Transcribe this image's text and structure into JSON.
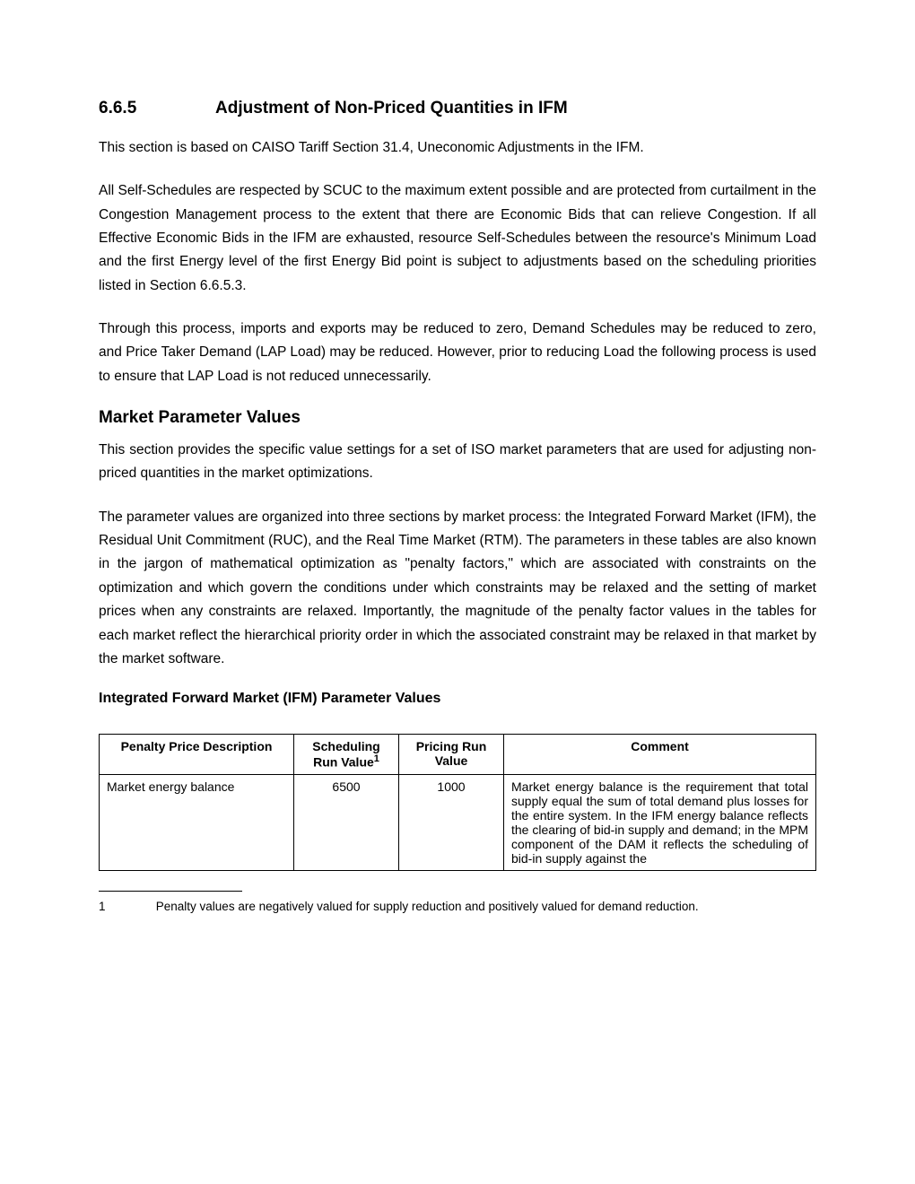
{
  "heading": {
    "number": "6.6.5",
    "title": "Adjustment of Non-Priced Quantities in IFM"
  },
  "paragraphs": {
    "p1": "This section is based on CAISO Tariff Section 31.4, Uneconomic Adjustments in the IFM.",
    "p2": "All Self-Schedules are respected by SCUC to the maximum extent possible and are protected from curtailment in the Congestion Management process to the extent that there are Economic Bids that can relieve Congestion. If all Effective Economic Bids in the IFM are exhausted, resource Self-Schedules between the resource's Minimum Load and the first Energy level of the first Energy Bid point is subject to adjustments based on the scheduling priorities listed in Section 6.6.5.3.",
    "p3": "Through this process, imports and exports may be reduced to zero, Demand Schedules may be reduced to zero, and Price Taker Demand (LAP Load) may be reduced. However, prior to reducing Load the following process is used to ensure that LAP Load is not reduced unnecessarily."
  },
  "subheading1": "Market Parameter Values",
  "paragraphs2": {
    "p4": "This section provides the specific value settings for a set of ISO market parameters that are used for adjusting non-priced quantities in the market optimizations.",
    "p5": "The parameter values are organized into three sections by market process: the Integrated Forward Market (IFM), the Residual Unit Commitment (RUC), and the Real Time Market (RTM). The parameters in these tables are also known in the jargon of mathematical optimization as \"penalty factors,\" which are associated with constraints on the optimization and which govern the conditions under which constraints may be relaxed and the setting of market prices when any constraints are relaxed. Importantly, the magnitude of the penalty factor values in the tables for each market reflect the hierarchical priority order in which the associated constraint may be relaxed in that market by the market software."
  },
  "subsubheading": "Integrated Forward Market (IFM) Parameter Values",
  "table": {
    "columns": {
      "c1": "Penalty Price Description",
      "c2_line1": "Scheduling",
      "c2_line2": "Run Value",
      "c2_sup": "1",
      "c3_line1": "Pricing Run",
      "c3_line2": "Value",
      "c4": "Comment"
    },
    "rows": [
      {
        "desc": "Market energy balance",
        "sched": "6500",
        "price": "1000",
        "comment": "Market energy balance is the requirement that total supply equal the sum of total demand plus losses for the entire system. In the IFM energy balance reflects the clearing of bid-in supply and demand; in the MPM component of the DAM it reflects the scheduling of bid-in supply against the"
      }
    ]
  },
  "footnote": {
    "num": "1",
    "text": "Penalty values are negatively valued for supply reduction and positively valued for demand reduction."
  },
  "styles": {
    "text_color": "#000000",
    "background_color": "#ffffff",
    "heading_fontsize": 19,
    "body_fontsize": 15.5,
    "table_fontsize": 14,
    "footnote_fontsize": 13.5,
    "border_color": "#000000",
    "line_height": 1.7
  }
}
